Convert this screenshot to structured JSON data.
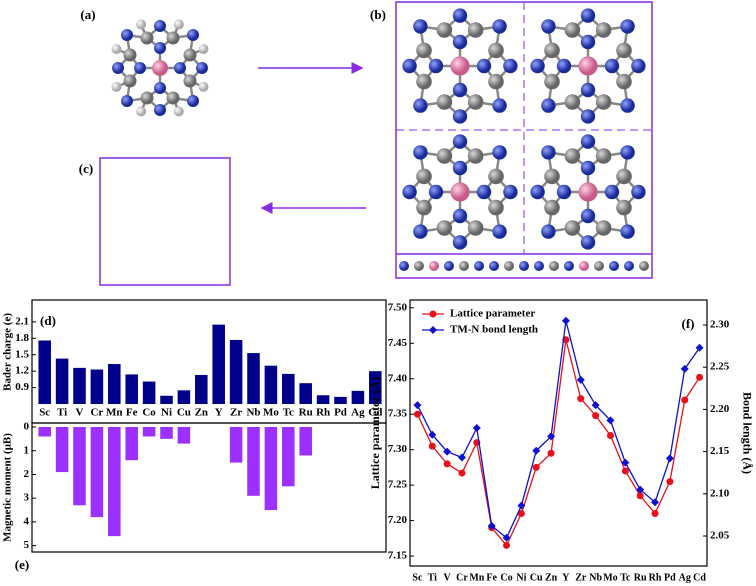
{
  "panels": {
    "a": "(a)",
    "b": "(b)",
    "c": "(c)"
  },
  "chart_data": [
    {
      "type": "bar",
      "panel_label": "(d)",
      "ylabel": "Bader charge (e)",
      "color": "#00008b",
      "categories": [
        "Sc",
        "Ti",
        "V",
        "Cr",
        "Mn",
        "Fe",
        "Co",
        "Ni",
        "Cu",
        "Zn",
        "Y",
        "Zr",
        "Nb",
        "Mo",
        "Tc",
        "Ru",
        "Rh",
        "Pd",
        "Ag",
        "Cd"
      ],
      "values": [
        1.76,
        1.43,
        1.26,
        1.23,
        1.33,
        1.14,
        1.01,
        0.75,
        0.85,
        1.13,
        2.05,
        1.77,
        1.53,
        1.3,
        1.15,
        0.98,
        0.76,
        0.73,
        0.84,
        1.2
      ],
      "ylim": [
        0.6,
        2.5
      ],
      "yticks": [
        0.9,
        1.2,
        1.5,
        1.8,
        2.1
      ]
    },
    {
      "type": "bar",
      "panel_label": "(e)",
      "ylabel": "Magnetic moment (μB)",
      "color": "#9b30ff",
      "y_inverted": true,
      "values": [
        0.4,
        1.9,
        3.3,
        3.8,
        4.6,
        1.4,
        0.4,
        0.5,
        0.7,
        0,
        0,
        1.5,
        2.9,
        3.5,
        2.5,
        1.2,
        0,
        0,
        0,
        0
      ],
      "ylim": [
        0,
        5.1
      ],
      "yticks": [
        0,
        1,
        2,
        3,
        4,
        5
      ]
    },
    {
      "type": "line",
      "panel_label": "(f)",
      "ylabel": "Lattice parameter (Å)",
      "y2label": "Bond length (Å)",
      "legend": "upper left",
      "categories": [
        "Sc",
        "Ti",
        "V",
        "Cr",
        "Mn",
        "Fe",
        "Co",
        "Ni",
        "Cu",
        "Zn",
        "Y",
        "Zr",
        "Nb",
        "Mo",
        "Tc",
        "Ru",
        "Rh",
        "Pd",
        "Ag",
        "Cd"
      ],
      "series": [
        {
          "name": "Lattice parameter",
          "color": "#e8101a",
          "marker": "circle",
          "values": [
            7.35,
            7.305,
            7.28,
            7.267,
            7.31,
            7.19,
            7.165,
            7.21,
            7.275,
            7.295,
            7.455,
            7.372,
            7.348,
            7.32,
            7.27,
            7.235,
            7.21,
            7.255,
            7.37,
            7.402
          ]
        },
        {
          "name": "TM-N bond length",
          "color": "#1010d0",
          "marker": "diamond",
          "axis": "y2",
          "values": [
            2.205,
            2.17,
            2.15,
            2.143,
            2.178,
            2.062,
            2.048,
            2.086,
            2.151,
            2.168,
            2.305,
            2.235,
            2.205,
            2.187,
            2.137,
            2.105,
            2.09,
            2.142,
            2.248,
            2.273
          ]
        }
      ],
      "ylim": [
        7.136,
        7.511
      ],
      "yticks": [
        7.15,
        {
          "value": 7.2,
          "label": "7.20"
        },
        7.25,
        {
          "value": 7.3,
          "label": "7.30"
        },
        7.35,
        {
          "value": 7.4,
          "label": "7.40"
        },
        7.45,
        {
          "value": 7.5,
          "label": "7.50"
        }
      ],
      "y2lim": [
        2.0145,
        2.3296
      ],
      "y2ticks": [
        2.05,
        {
          "value": 2.1,
          "label": "2.10"
        },
        2.15,
        {
          "value": 2.2,
          "label": "2.20"
        },
        2.25,
        {
          "value": 2.3,
          "label": "2.30"
        }
      ]
    }
  ]
}
